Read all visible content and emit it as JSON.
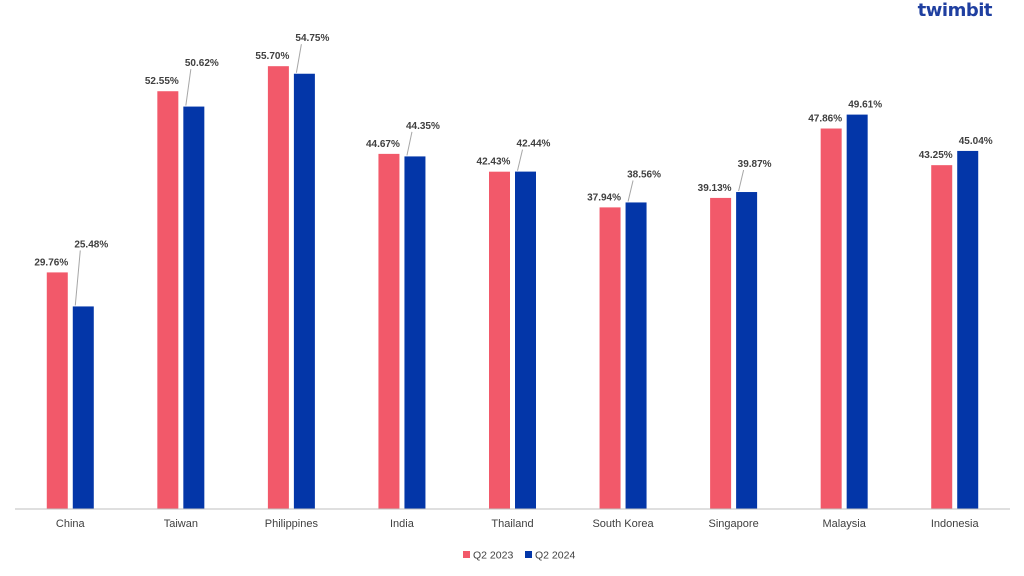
{
  "brand": {
    "logo_text": "twimbit"
  },
  "chart_data": {
    "type": "bar",
    "categories": [
      "China",
      "Taiwan",
      "Philippines",
      "India",
      "Thailand",
      "South Korea",
      "Singapore",
      "Malaysia",
      "Indonesia"
    ],
    "series": [
      {
        "name": "Q2 2023",
        "color": "#f2596a",
        "values": [
          29.76,
          52.55,
          55.7,
          44.67,
          42.43,
          37.94,
          39.13,
          47.86,
          43.25
        ],
        "labels": [
          "29.76%",
          "52.55%",
          "55.70%",
          "44.67%",
          "42.43%",
          "37.94%",
          "39.13%",
          "47.86%",
          "43.25%"
        ]
      },
      {
        "name": "Q2 2024",
        "color": "#0336a8",
        "values": [
          25.48,
          50.62,
          54.75,
          44.35,
          42.44,
          38.56,
          39.87,
          49.61,
          45.04
        ],
        "labels": [
          "25.48%",
          "50.62%",
          "54.75%",
          "44.35%",
          "42.44%",
          "38.56%",
          "39.87%",
          "49.61%",
          "45.04%"
        ]
      }
    ],
    "title": "",
    "xlabel": "",
    "ylabel": "",
    "ylim": [
      0,
      60
    ],
    "grid": false,
    "legend_position": "bottom"
  }
}
